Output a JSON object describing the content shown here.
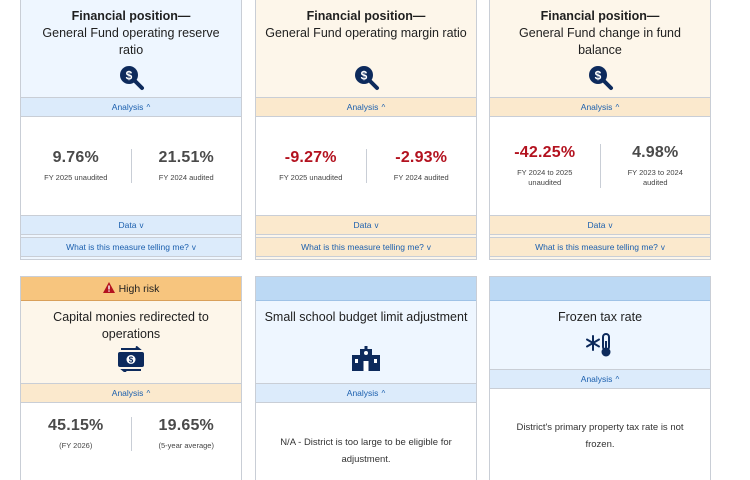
{
  "cards": [
    {
      "title": "Financial position—",
      "subtitle": "General Fund operating reserve ratio",
      "icon": "money-search-icon",
      "analysis": "Analysis",
      "metrics": [
        {
          "value": "9.76%",
          "label": "FY 2025 unaudited"
        },
        {
          "value": "21.51%",
          "label": "FY 2024 audited"
        }
      ],
      "data_label": "Data",
      "question_label": "What is this measure telling me?"
    },
    {
      "title": "Financial position—",
      "subtitle": "General Fund operating margin ratio",
      "icon": "money-search-icon",
      "analysis": "Analysis",
      "metrics": [
        {
          "value": "-9.27%",
          "label": "FY 2025 unaudited"
        },
        {
          "value": "-2.93%",
          "label": "FY 2024 audited"
        }
      ],
      "data_label": "Data",
      "question_label": "What is this measure telling me?"
    },
    {
      "title": "Financial position—",
      "subtitle": "General Fund change in fund balance",
      "icon": "money-search-icon",
      "analysis": "Analysis",
      "metrics": [
        {
          "value": "-42.25%",
          "label": "FY 2024 to 2025 unaudited"
        },
        {
          "value": "4.98%",
          "label": "FY 2023 to 2024 audited"
        }
      ],
      "data_label": "Data",
      "question_label": "What is this measure telling me?"
    },
    {
      "badge": "High risk",
      "title": "Capital monies redirected to operations",
      "icon": "money-exchange-icon",
      "analysis": "Analysis",
      "metrics": [
        {
          "value": "45.15%",
          "label": "(FY 2026)"
        },
        {
          "value": "19.65%",
          "label": "(5-year average)"
        }
      ]
    },
    {
      "title": "Small school budget limit adjustment",
      "icon": "school-building-icon",
      "analysis": "Analysis",
      "note": "N/A - District is too large to be eligible for adjustment."
    },
    {
      "title": "Frozen tax rate",
      "icon": "snowflake-thermometer-icon",
      "analysis": "Analysis",
      "note": "District's primary property tax rate is not frozen."
    }
  ],
  "colors": {
    "link": "#1b5fae",
    "negative": "#b3121f",
    "badge": "#f7c57e",
    "icon": "#0d2a5c"
  }
}
